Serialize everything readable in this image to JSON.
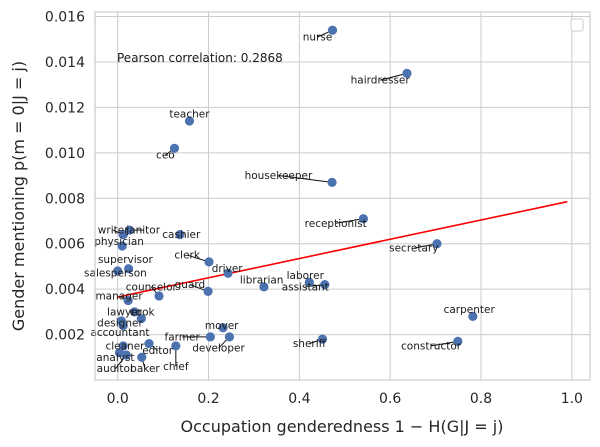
{
  "chart_data": {
    "type": "scatter",
    "title": "",
    "xlabel": "Occupation genderedness 1 − H(G|J = j)",
    "ylabel": "Gender mentioning p(m = 0|J = j)",
    "xlim": [
      -0.05,
      1.04
    ],
    "ylim": [
      0.0,
      0.0162
    ],
    "x_ticks": [
      0.0,
      0.2,
      0.4,
      0.6,
      0.8,
      1.0
    ],
    "x_tick_labels": [
      "0.0",
      "0.2",
      "0.4",
      "0.6",
      "0.8",
      "1.0"
    ],
    "y_ticks": [
      0.002,
      0.004,
      0.006,
      0.008,
      0.01,
      0.012,
      0.014,
      0.016
    ],
    "y_tick_labels": [
      "0.002",
      "0.004",
      "0.006",
      "0.008",
      "0.010",
      "0.012",
      "0.014",
      "0.016"
    ],
    "grid": true,
    "legend": "top-right (empty)",
    "annotation": "Pearson correlation: 0.2868",
    "colors": {
      "points": "#4c72b0",
      "fit_line": "#ff0000",
      "grid": "#cccccc",
      "axes": "#cccccc"
    },
    "fit_line": {
      "x": [
        0.0,
        0.99
      ],
      "y": [
        0.00365,
        0.00785
      ]
    },
    "points": [
      {
        "label": "nurse",
        "x": 0.473,
        "y": 0.0154,
        "lx": 0.44,
        "ly": 0.0151
      },
      {
        "label": "hairdresser",
        "x": 0.637,
        "y": 0.0135,
        "lx": 0.578,
        "ly": 0.0132
      },
      {
        "label": "teacher",
        "x": 0.158,
        "y": 0.0114,
        "lx": 0.158,
        "ly": 0.0117
      },
      {
        "label": "ceo",
        "x": 0.125,
        "y": 0.0102,
        "lx": 0.105,
        "ly": 0.0099
      },
      {
        "label": "housekeeper",
        "x": 0.472,
        "y": 0.0087,
        "lx": 0.354,
        "ly": 0.009
      },
      {
        "label": "receptionist",
        "x": 0.541,
        "y": 0.0071,
        "lx": 0.48,
        "ly": 0.0069
      },
      {
        "label": "secretary",
        "x": 0.703,
        "y": 0.006,
        "lx": 0.652,
        "ly": 0.0058
      },
      {
        "label": "writer",
        "x": 0.012,
        "y": 0.0064,
        "lx": -0.01,
        "ly": 0.0066
      },
      {
        "label": "janitor",
        "x": 0.026,
        "y": 0.0066,
        "lx": 0.056,
        "ly": 0.0066
      },
      {
        "label": "cashier",
        "x": 0.137,
        "y": 0.0064,
        "lx": 0.14,
        "ly": 0.0064
      },
      {
        "label": "physician",
        "x": 0.01,
        "y": 0.0059,
        "lx": 0.003,
        "ly": 0.0061
      },
      {
        "label": "clerk",
        "x": 0.201,
        "y": 0.0052,
        "lx": 0.153,
        "ly": 0.0055
      },
      {
        "label": "supervisor",
        "x": 0.024,
        "y": 0.0049,
        "lx": 0.017,
        "ly": 0.0053
      },
      {
        "label": "driver",
        "x": 0.243,
        "y": 0.0047,
        "lx": 0.241,
        "ly": 0.0049
      },
      {
        "label": "salesperson",
        "x": 0.0,
        "y": 0.0048,
        "lx": -0.005,
        "ly": 0.0047
      },
      {
        "label": "librarian",
        "x": 0.322,
        "y": 0.0041,
        "lx": 0.317,
        "ly": 0.0044
      },
      {
        "label": "laborer",
        "x": 0.422,
        "y": 0.0043,
        "lx": 0.413,
        "ly": 0.0046
      },
      {
        "label": "assistant",
        "x": 0.456,
        "y": 0.0042,
        "lx": 0.413,
        "ly": 0.0041
      },
      {
        "label": "guard",
        "x": 0.199,
        "y": 0.0039,
        "lx": 0.159,
        "ly": 0.0042
      },
      {
        "label": "counselor",
        "x": 0.091,
        "y": 0.0037,
        "lx": 0.074,
        "ly": 0.0041
      },
      {
        "label": "manager",
        "x": 0.023,
        "y": 0.0035,
        "lx": 0.003,
        "ly": 0.0037
      },
      {
        "label": "carpenter",
        "x": 0.782,
        "y": 0.0028,
        "lx": 0.774,
        "ly": 0.0031
      },
      {
        "label": "lawyer",
        "x": 0.037,
        "y": 0.003,
        "lx": 0.015,
        "ly": 0.003
      },
      {
        "label": "cook",
        "x": 0.052,
        "y": 0.0027,
        "lx": 0.054,
        "ly": 0.003
      },
      {
        "label": "designer",
        "x": 0.008,
        "y": 0.0026,
        "lx": 0.005,
        "ly": 0.0025
      },
      {
        "label": "mover",
        "x": 0.232,
        "y": 0.0023,
        "lx": 0.229,
        "ly": 0.0024
      },
      {
        "label": "accountant",
        "x": 0.012,
        "y": 0.0024,
        "lx": 0.005,
        "ly": 0.0021
      },
      {
        "label": "farmer",
        "x": 0.204,
        "y": 0.0019,
        "lx": 0.142,
        "ly": 0.0019
      },
      {
        "label": "developer",
        "x": 0.246,
        "y": 0.0019,
        "lx": 0.222,
        "ly": 0.0014
      },
      {
        "label": "sheriff",
        "x": 0.451,
        "y": 0.0018,
        "lx": 0.422,
        "ly": 0.0016
      },
      {
        "label": "constructor",
        "x": 0.749,
        "y": 0.0017,
        "lx": 0.69,
        "ly": 0.0015
      },
      {
        "label": "cleaner",
        "x": 0.012,
        "y": 0.0015,
        "lx": 0.016,
        "ly": 0.0015
      },
      {
        "label": "editor",
        "x": 0.069,
        "y": 0.0016,
        "lx": 0.088,
        "ly": 0.0013
      },
      {
        "label": "analyst",
        "x": 0.004,
        "y": 0.0012,
        "lx": -0.005,
        "ly": 0.001
      },
      {
        "label": "auditor",
        "x": 0.019,
        "y": 0.0011,
        "lx": -0.005,
        "ly": 0.0005
      },
      {
        "label": "baker",
        "x": 0.053,
        "y": 0.001,
        "lx": 0.06,
        "ly": 0.0005
      },
      {
        "label": "chief",
        "x": 0.128,
        "y": 0.0015,
        "lx": 0.128,
        "ly": 0.0006
      }
    ]
  }
}
